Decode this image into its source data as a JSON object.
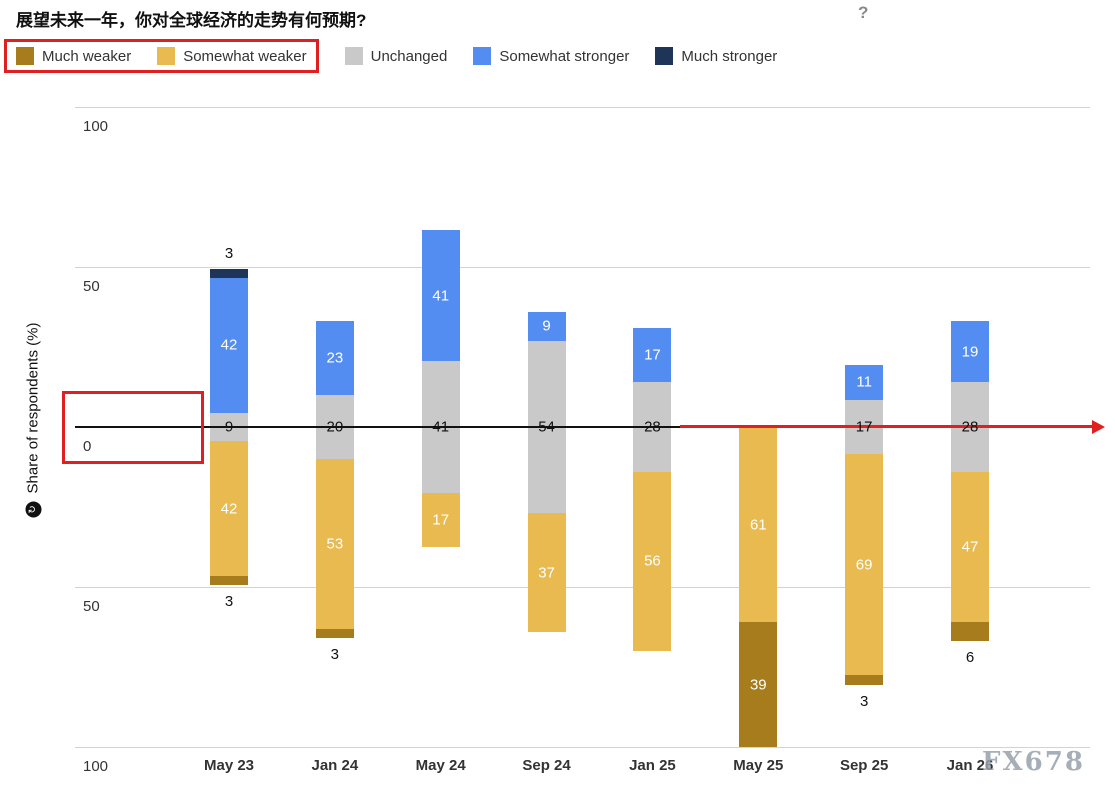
{
  "title": "展望未来一年，你对全球经济的走势有何预期?",
  "help_icon": "?",
  "y_axis": {
    "label": "Share of respondents (%)",
    "ticks": [
      "100",
      "50",
      "0",
      "50",
      "100"
    ]
  },
  "legend": {
    "items": [
      {
        "label": "Much weaker",
        "color": "#A67C1C"
      },
      {
        "label": "Somewhat weaker",
        "color": "#E8BA4F"
      },
      {
        "label": "Unchanged",
        "color": "#C9C9C9"
      },
      {
        "label": "Somewhat stronger",
        "color": "#548DF2"
      },
      {
        "label": "Much stronger",
        "color": "#1F3557"
      }
    ]
  },
  "annotations": {
    "color": "#E02020",
    "legend_box_around": [
      "Much weaker",
      "Somewhat weaker"
    ],
    "zero_box_around": "0",
    "arrow": "red arrow extending right along the zero line"
  },
  "watermark": "FX678",
  "chart_data": {
    "type": "bar",
    "variant": "diverging-stacked-column",
    "title": "展望未来一年，你对全球经济的走势有何预期?",
    "ylabel": "Share of respondents (%)",
    "ylim": [
      -100,
      100
    ],
    "grid": true,
    "legend_position": "top",
    "baseline_note": "Unchanged segment centered on the zero line; stronger above, weaker below",
    "categories": [
      "May 23",
      "Jan 24",
      "May 24",
      "Sep 24",
      "Jan 25",
      "May 25",
      "Sep 25",
      "Jan 26"
    ],
    "series": [
      {
        "name": "Much stronger",
        "color": "#1F3557",
        "values": [
          3,
          0,
          0,
          0,
          0,
          0,
          0,
          0
        ]
      },
      {
        "name": "Somewhat stronger",
        "color": "#548DF2",
        "values": [
          42,
          23,
          41,
          9,
          17,
          0,
          11,
          19
        ]
      },
      {
        "name": "Unchanged",
        "color": "#C9C9C9",
        "values": [
          9,
          20,
          41,
          54,
          28,
          0,
          17,
          28
        ]
      },
      {
        "name": "Somewhat weaker",
        "color": "#E8BA4F",
        "values": [
          42,
          53,
          17,
          37,
          56,
          61,
          69,
          47
        ]
      },
      {
        "name": "Much weaker",
        "color": "#A67C1C",
        "values": [
          3,
          3,
          0,
          0,
          0,
          39,
          3,
          6
        ]
      }
    ]
  }
}
